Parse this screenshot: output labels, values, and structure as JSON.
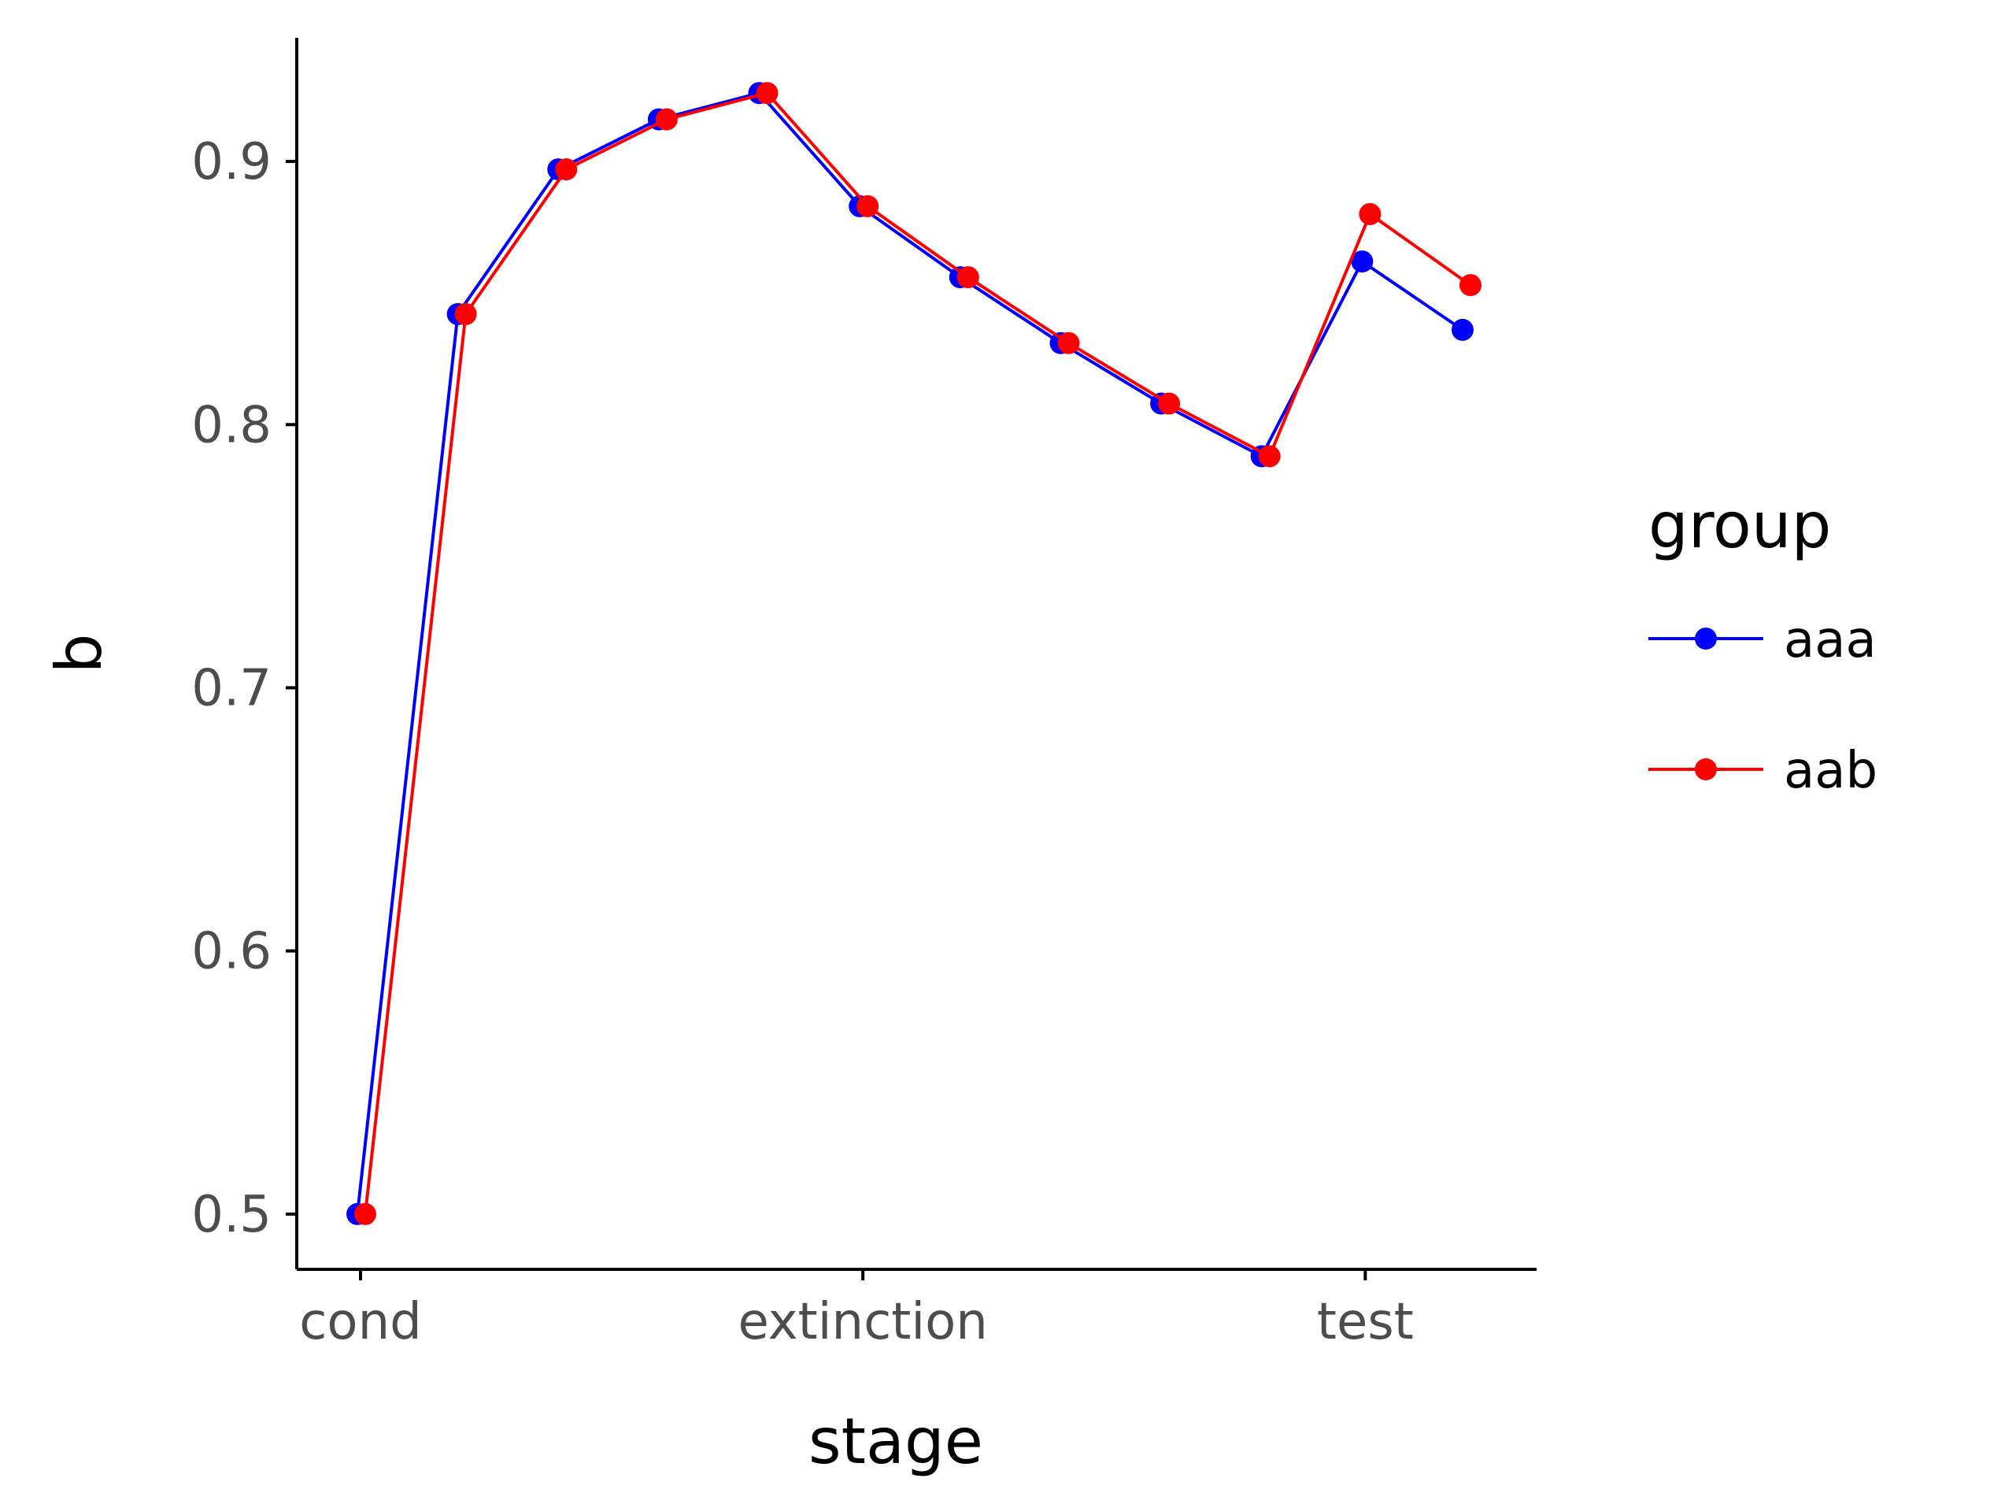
{
  "chart_data": {
    "type": "line",
    "xlabel": "stage",
    "ylabel": "b",
    "x_tick_labels": [
      "cond",
      "extinction",
      "test"
    ],
    "y_ticks": [
      "0.5",
      "0.6",
      "0.7",
      "0.8",
      "0.9"
    ],
    "ylim": [
      0.479,
      0.947
    ],
    "grid": false,
    "legend": {
      "title": "group",
      "position": "right"
    },
    "x": [
      0,
      1,
      2,
      3,
      4,
      5,
      6,
      7,
      8,
      9,
      10,
      11
    ],
    "series": [
      {
        "name": "aaa",
        "color": "#0000ff",
        "values": [
          0.5,
          0.842,
          0.897,
          0.916,
          0.926,
          0.883,
          0.856,
          0.831,
          0.808,
          0.788,
          0.862,
          0.836
        ]
      },
      {
        "name": "aab",
        "color": "#ff0000",
        "values": [
          0.5,
          0.842,
          0.897,
          0.916,
          0.926,
          0.883,
          0.856,
          0.831,
          0.808,
          0.788,
          0.88,
          0.853
        ]
      }
    ]
  }
}
